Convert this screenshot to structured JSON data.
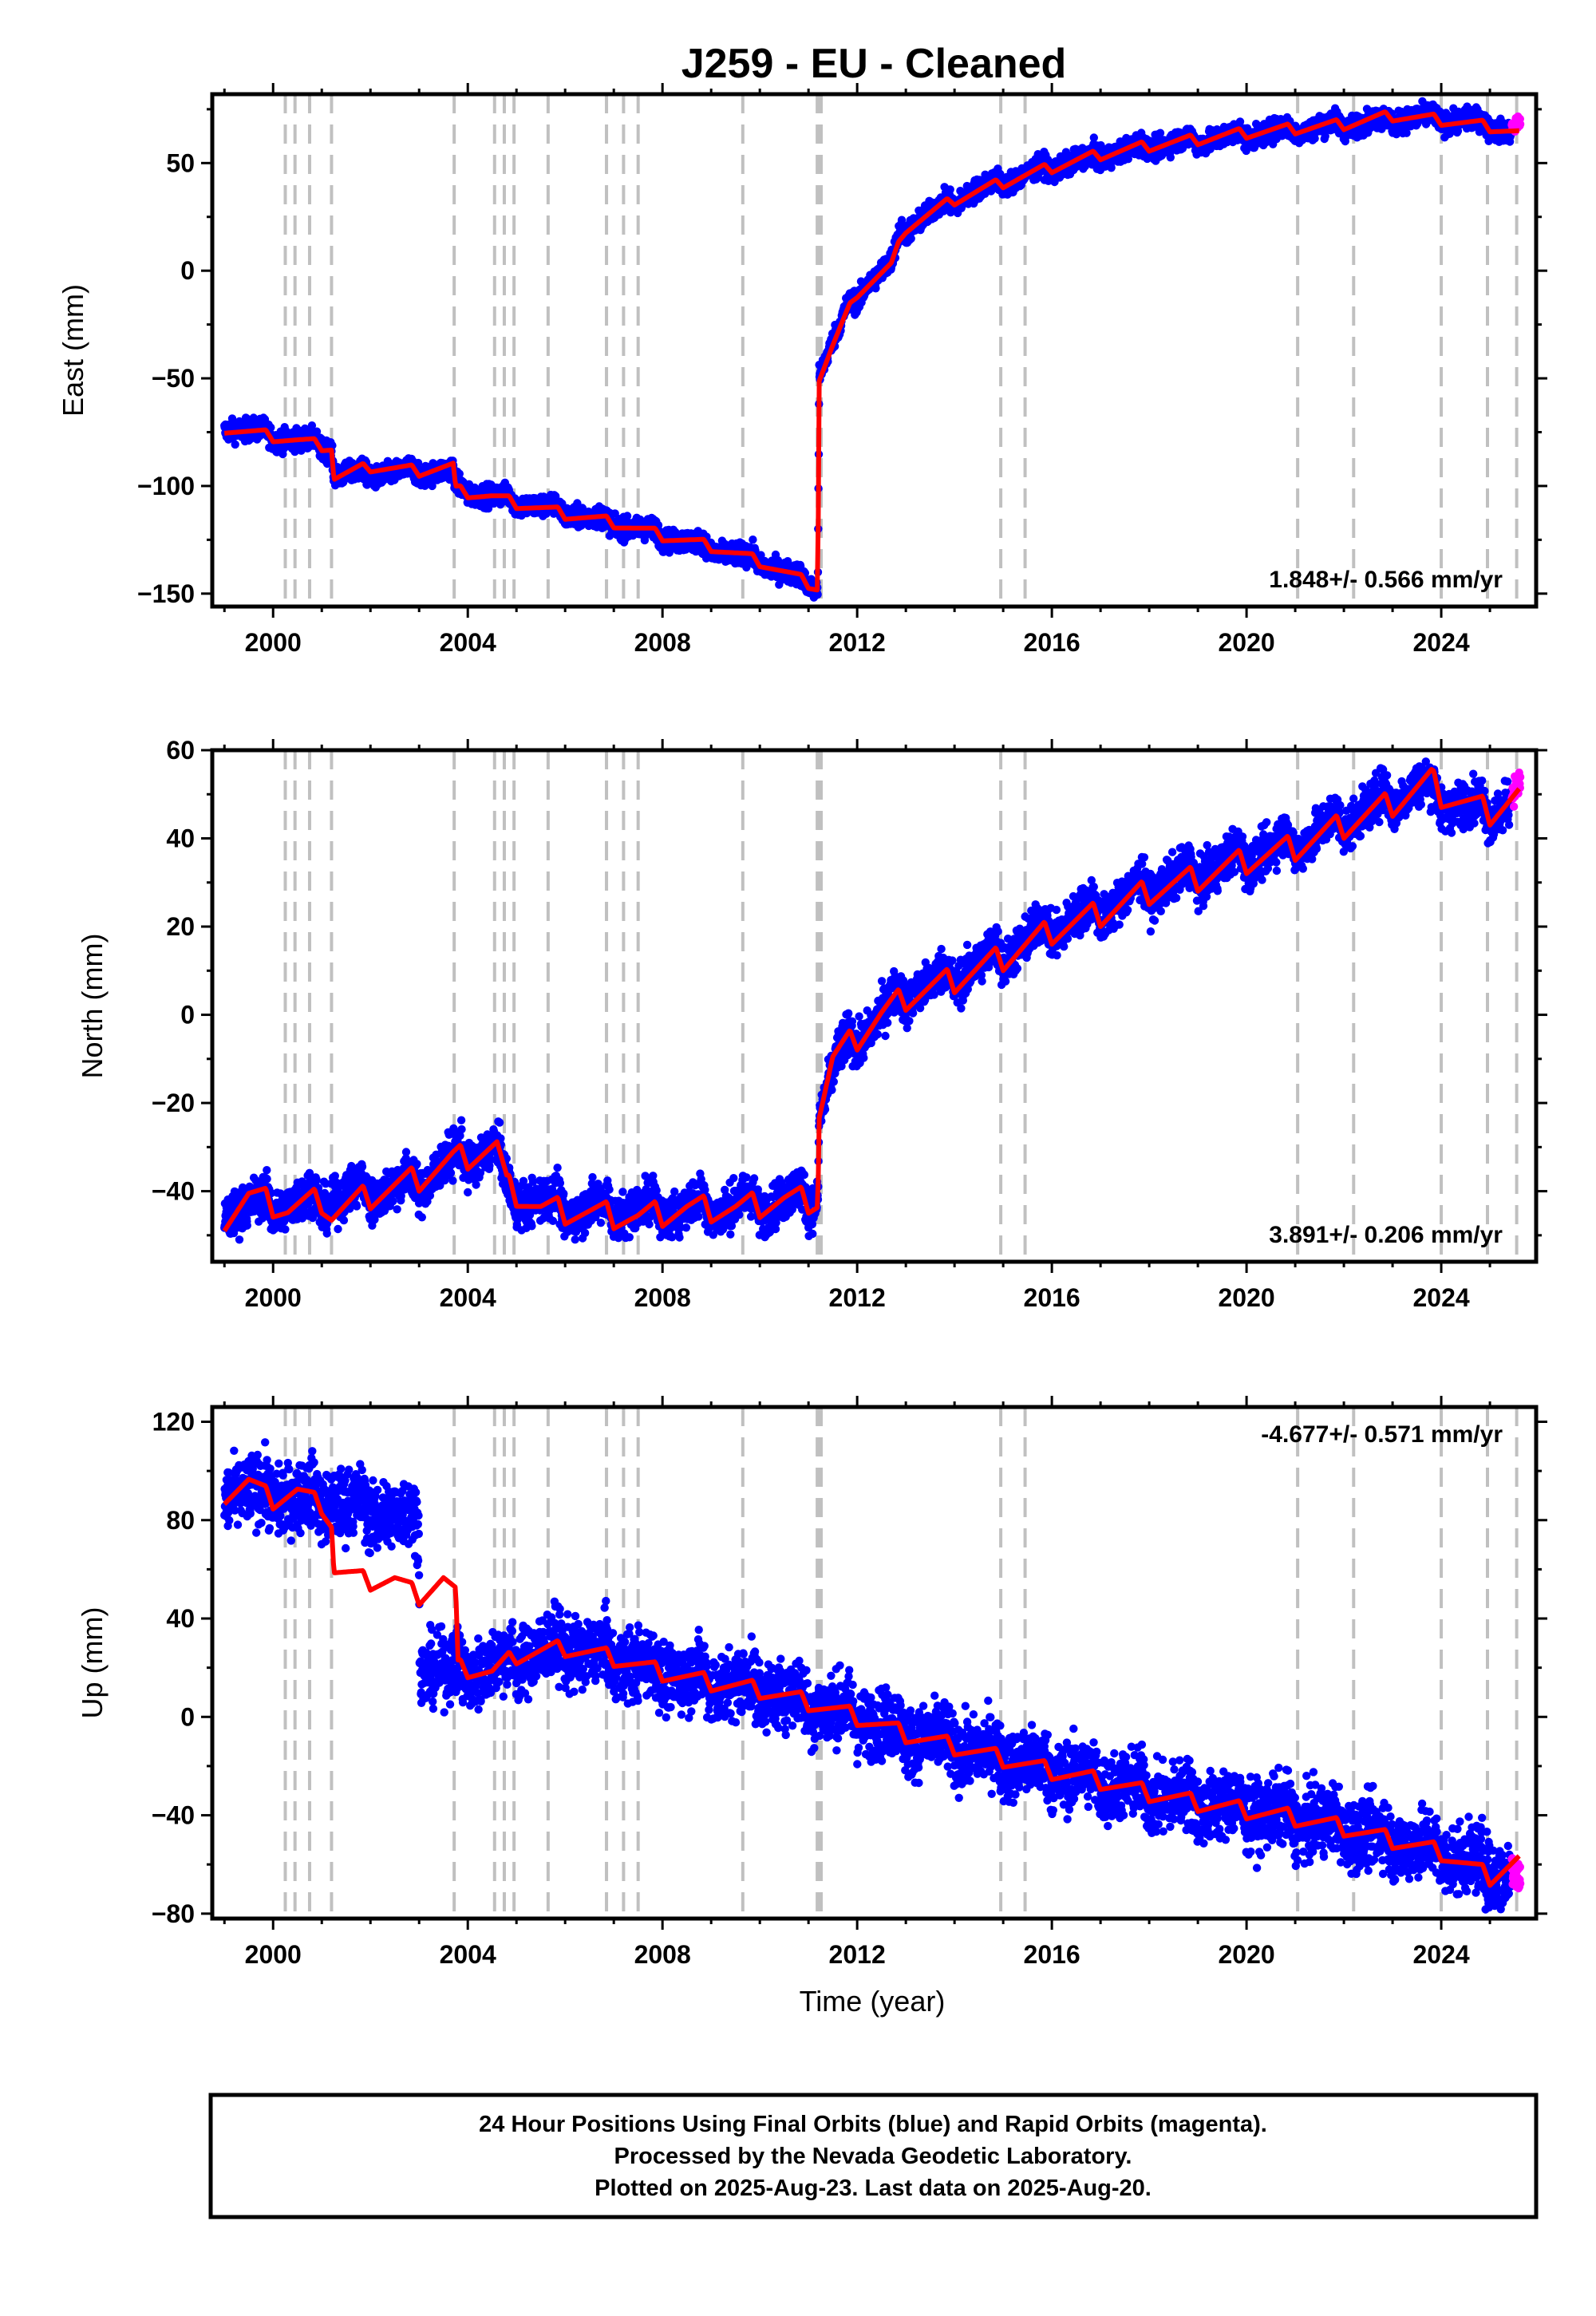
{
  "figure": {
    "title": "J259  - EU - Cleaned",
    "xlabel": "Time (year)",
    "footnote": [
      "24 Hour Positions Using Final Orbits (blue) and Rapid Orbits (magenta).",
      "Processed by the Nevada Geodetic Laboratory.",
      "Plotted on 2025-Aug-23. Last data on 2025-Aug-20."
    ]
  },
  "colors": {
    "final_orbits": "#0000ff",
    "rapid_orbits": "#ff00ff",
    "model_fit": "#ff0000",
    "event_lines": "#c0c0c0",
    "frame": "#000000"
  },
  "chart_data": [
    {
      "type": "scatter",
      "panel": "east",
      "ylabel": "East (mm)",
      "rate_label": "1.848+/- 0.566 mm/yr",
      "rate_position": "bottom-right",
      "xlim": [
        1998.75,
        2025.95
      ],
      "ylim": [
        -156,
        82
      ],
      "x_ticks": [
        2000,
        2004,
        2008,
        2012,
        2016,
        2020,
        2024
      ],
      "y_ticks": [
        -150,
        -100,
        -50,
        0,
        50
      ],
      "series_final_trend": [
        [
          1999.0,
          -72
        ],
        [
          2001.2,
          -82
        ],
        [
          2001.25,
          -95
        ],
        [
          2003.7,
          -93
        ],
        [
          2003.75,
          -101
        ],
        [
          2006.0,
          -112
        ],
        [
          2008.0,
          -123
        ],
        [
          2010.0,
          -135
        ],
        [
          2011.19,
          -147
        ],
        [
          2011.22,
          -48
        ],
        [
          2011.4,
          -38
        ],
        [
          2011.8,
          -18
        ],
        [
          2012.2,
          -6
        ],
        [
          2012.7,
          3
        ],
        [
          2012.9,
          18
        ],
        [
          2013.5,
          27
        ],
        [
          2014.5,
          38
        ],
        [
          2015.5,
          45
        ],
        [
          2016.5,
          51
        ],
        [
          2018.0,
          58
        ],
        [
          2020.0,
          63
        ],
        [
          2022.0,
          68
        ],
        [
          2023.5,
          71
        ],
        [
          2024.5,
          70
        ],
        [
          2025.6,
          64
        ]
      ],
      "series_rapid_trend": [
        [
          2025.45,
          66
        ],
        [
          2025.63,
          70
        ]
      ],
      "seasonal_amplitude": 2.5,
      "scatter_noise": 2.5,
      "model_fit": [
        [
          1999.0,
          -73
        ],
        [
          1999.5,
          -75
        ],
        [
          2000.0,
          -77
        ],
        [
          2000.5,
          -79
        ],
        [
          2001.2,
          -82
        ],
        [
          2001.25,
          -96
        ],
        [
          2002.0,
          -91
        ],
        [
          2003.0,
          -93
        ],
        [
          2003.7,
          -91
        ],
        [
          2003.75,
          -102
        ],
        [
          2004.5,
          -105
        ],
        [
          2005.0,
          -108
        ],
        [
          2006.0,
          -113
        ],
        [
          2007.0,
          -117
        ],
        [
          2008.0,
          -123
        ],
        [
          2009.0,
          -128
        ],
        [
          2010.0,
          -135
        ],
        [
          2011.19,
          -147
        ],
        [
          2011.22,
          -50
        ],
        [
          2011.5,
          -35
        ],
        [
          2012.0,
          -10
        ],
        [
          2012.7,
          2
        ],
        [
          2013.0,
          20
        ],
        [
          2014.0,
          33
        ],
        [
          2015.0,
          41
        ],
        [
          2016.0,
          48
        ],
        [
          2017.0,
          54
        ],
        [
          2018.0,
          58
        ],
        [
          2019.0,
          61
        ],
        [
          2020.0,
          64
        ],
        [
          2021.0,
          66
        ],
        [
          2022.0,
          68
        ],
        [
          2023.0,
          72
        ],
        [
          2024.0,
          70
        ],
        [
          2025.0,
          67
        ],
        [
          2025.6,
          64
        ]
      ],
      "fit_seasonal_amplitude": 2.5
    },
    {
      "type": "scatter",
      "panel": "north",
      "ylabel": "North (mm)",
      "rate_label": "3.891+/- 0.206 mm/yr",
      "rate_position": "bottom-right",
      "xlim": [
        1998.75,
        2025.95
      ],
      "ylim": [
        -56,
        60
      ],
      "x_ticks": [
        2000,
        2004,
        2008,
        2012,
        2016,
        2020,
        2024
      ],
      "y_ticks": [
        -40,
        -20,
        0,
        20,
        40,
        60
      ],
      "series_final_trend": [
        [
          1999.0,
          -44
        ],
        [
          2001.0,
          -42
        ],
        [
          2003.0,
          -38
        ],
        [
          2003.7,
          -33
        ],
        [
          2004.6,
          -30
        ],
        [
          2004.8,
          -40
        ],
        [
          2006.0,
          -44
        ],
        [
          2008.0,
          -44
        ],
        [
          2010.0,
          -43
        ],
        [
          2011.19,
          -41
        ],
        [
          2011.22,
          -22
        ],
        [
          2011.6,
          -10
        ],
        [
          2012.0,
          -5
        ],
        [
          2013.0,
          5
        ],
        [
          2014.0,
          9
        ],
        [
          2015.0,
          14
        ],
        [
          2016.0,
          20
        ],
        [
          2017.0,
          24
        ],
        [
          2018.0,
          29
        ],
        [
          2019.0,
          32
        ],
        [
          2020.0,
          36
        ],
        [
          2021.0,
          39
        ],
        [
          2022.0,
          44
        ],
        [
          2023.5,
          52
        ],
        [
          2024.0,
          49
        ],
        [
          2025.0,
          46
        ],
        [
          2025.6,
          50
        ]
      ],
      "series_rapid_trend": [
        [
          2025.45,
          50
        ],
        [
          2025.63,
          53
        ]
      ],
      "seasonal_amplitude": 3.0,
      "scatter_noise": 2.5,
      "model_fit": [
        [
          1999.0,
          -46
        ],
        [
          1999.5,
          -41
        ],
        [
          2000.3,
          -44
        ],
        [
          2001.0,
          -42
        ],
        [
          2001.2,
          -45
        ],
        [
          2002.0,
          -41
        ],
        [
          2003.0,
          -37
        ],
        [
          2003.7,
          -33
        ],
        [
          2004.6,
          -30
        ],
        [
          2004.8,
          -39
        ],
        [
          2005.5,
          -44
        ],
        [
          2006.5,
          -45
        ],
        [
          2007.5,
          -46
        ],
        [
          2008.5,
          -44
        ],
        [
          2009.5,
          -44
        ],
        [
          2010.5,
          -42
        ],
        [
          2011.19,
          -42
        ],
        [
          2011.22,
          -22
        ],
        [
          2011.5,
          -10
        ],
        [
          2012.0,
          -5
        ],
        [
          2012.5,
          0
        ],
        [
          2013.0,
          4
        ],
        [
          2014.0,
          8
        ],
        [
          2015.0,
          13
        ],
        [
          2016.0,
          19
        ],
        [
          2017.0,
          23
        ],
        [
          2018.0,
          28
        ],
        [
          2019.0,
          31
        ],
        [
          2020.0,
          35
        ],
        [
          2021.0,
          38
        ],
        [
          2022.0,
          43
        ],
        [
          2023.0,
          48
        ],
        [
          2023.8,
          53
        ],
        [
          2024.0,
          50
        ],
        [
          2025.0,
          46
        ],
        [
          2025.6,
          50
        ]
      ],
      "fit_seasonal_amplitude": 3.0
    },
    {
      "type": "scatter",
      "panel": "up",
      "ylabel": "Up (mm)",
      "rate_label": "-4.677+/- 0.571 mm/yr",
      "rate_position": "top-right",
      "xlim": [
        1998.75,
        2025.95
      ],
      "ylim": [
        -82,
        126
      ],
      "x_ticks": [
        2000,
        2004,
        2008,
        2012,
        2016,
        2020,
        2024
      ],
      "y_ticks": [
        -80,
        -40,
        0,
        40,
        80,
        120
      ],
      "series_final_trend": [
        [
          1999.0,
          92
        ],
        [
          2001.0,
          88
        ],
        [
          2002.5,
          82
        ],
        [
          2003.0,
          80
        ],
        [
          2003.01,
          21
        ],
        [
          2004.0,
          18
        ],
        [
          2005.0,
          24
        ],
        [
          2006.0,
          28
        ],
        [
          2007.0,
          24
        ],
        [
          2008.0,
          18
        ],
        [
          2009.0,
          14
        ],
        [
          2010.0,
          12
        ],
        [
          2011.0,
          6
        ],
        [
          2012.0,
          0
        ],
        [
          2013.0,
          -7
        ],
        [
          2014.0,
          -12
        ],
        [
          2015.0,
          -17
        ],
        [
          2016.0,
          -22
        ],
        [
          2017.0,
          -26
        ],
        [
          2018.0,
          -31
        ],
        [
          2019.0,
          -35
        ],
        [
          2020.0,
          -38
        ],
        [
          2021.0,
          -41
        ],
        [
          2022.0,
          -45
        ],
        [
          2023.0,
          -50
        ],
        [
          2024.0,
          -55
        ],
        [
          2025.0,
          -62
        ],
        [
          2025.6,
          -65
        ]
      ],
      "series_rapid_trend": [
        [
          2025.45,
          -60
        ],
        [
          2025.63,
          -66
        ]
      ],
      "seasonal_amplitude": 4.0,
      "scatter_noise": 7.0,
      "model_fit": [
        [
          1999.0,
          90
        ],
        [
          1999.5,
          96
        ],
        [
          2000.0,
          88
        ],
        [
          2000.5,
          92
        ],
        [
          2001.0,
          86
        ],
        [
          2001.2,
          79
        ],
        [
          2001.25,
          60
        ],
        [
          2002.0,
          55
        ],
        [
          2002.5,
          56
        ],
        [
          2003.0,
          49
        ],
        [
          2003.5,
          56
        ],
        [
          2003.75,
          50
        ],
        [
          2003.8,
          20
        ],
        [
          2004.5,
          18
        ],
        [
          2005.0,
          25
        ],
        [
          2006.0,
          28
        ],
        [
          2007.0,
          24
        ],
        [
          2008.0,
          18
        ],
        [
          2009.0,
          14
        ],
        [
          2010.0,
          11
        ],
        [
          2011.0,
          6
        ],
        [
          2012.0,
          0
        ],
        [
          2013.0,
          -7
        ],
        [
          2014.0,
          -12
        ],
        [
          2015.0,
          -17
        ],
        [
          2016.0,
          -22
        ],
        [
          2017.0,
          -26
        ],
        [
          2018.0,
          -31
        ],
        [
          2019.0,
          -35
        ],
        [
          2020.0,
          -38
        ],
        [
          2021.0,
          -41
        ],
        [
          2022.0,
          -45
        ],
        [
          2023.0,
          -50
        ],
        [
          2024.0,
          -55
        ],
        [
          2025.0,
          -65
        ],
        [
          2025.6,
          -58
        ]
      ],
      "fit_seasonal_amplitude": 3.5
    }
  ],
  "event_lines": [
    2000.25,
    2000.45,
    2000.75,
    2001.2,
    2003.72,
    2004.55,
    2004.75,
    2004.95,
    2005.65,
    2006.85,
    2007.2,
    2007.5,
    2009.65,
    2011.18,
    2011.22,
    2011.26,
    2014.95,
    2015.45,
    2021.05,
    2022.2,
    2024.0,
    2024.95,
    2025.55
  ],
  "data_span": [
    1999.0,
    2025.63
  ]
}
